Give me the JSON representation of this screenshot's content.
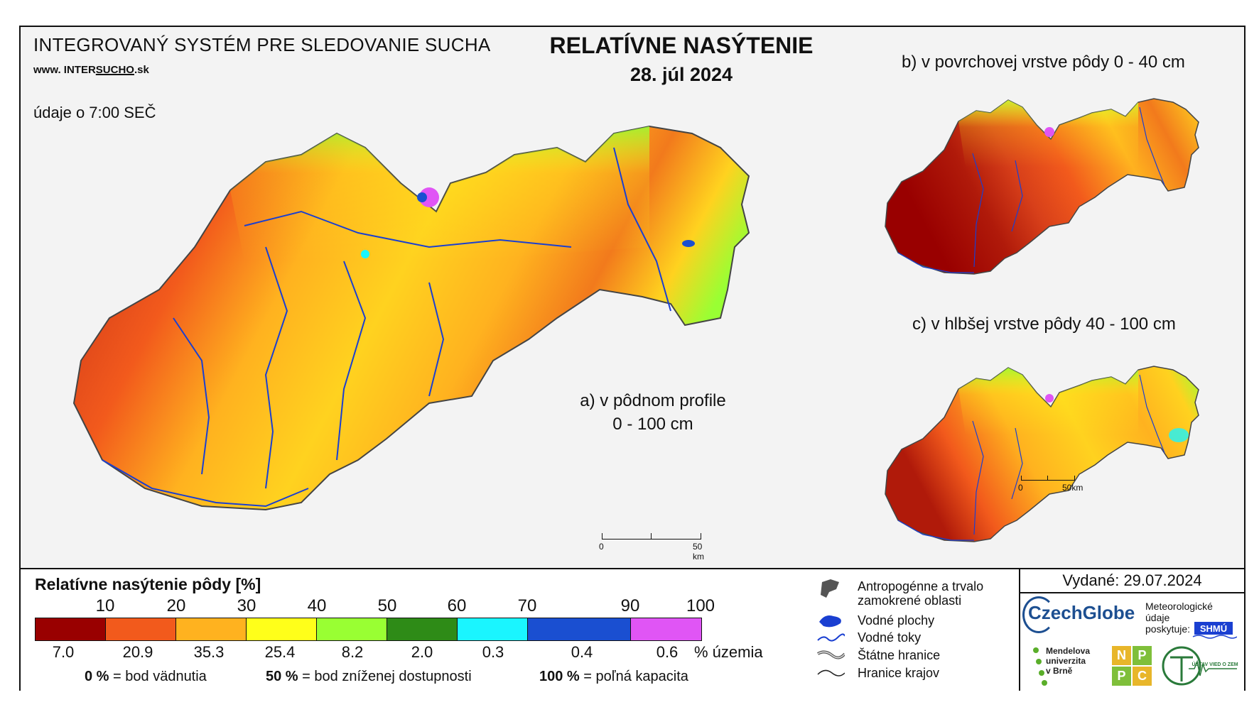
{
  "header": {
    "system_title": "INTEGROVANÝ SYSTÉM PRE SLEDOVANIE SUCHA",
    "website_prefix": "www. INTER",
    "website_brand": "SUCHO",
    "website_suffix": ".sk",
    "data_time": "údaje o 7:00 SEČ",
    "main_title": "RELATÍVNE NASÝTENIE",
    "main_date": "28. júl 2024"
  },
  "maps": {
    "a_label_line1": "a) v pôdnom profile",
    "a_label_line2": "0 - 100 cm",
    "b_label": "b) v povrchovej vrstve pôdy 0 - 40 cm",
    "c_label": "c) v hlbšej vrstve pôdy 40 - 100 cm",
    "scale_main": {
      "zero": "0",
      "end": "50 km"
    },
    "scale_small": {
      "zero": "0",
      "end": "50km"
    }
  },
  "legend": {
    "title": "Relatívne nasýtenie pôdy [%]",
    "ticks": [
      "10",
      "20",
      "30",
      "40",
      "50",
      "60",
      "70",
      "90",
      "100"
    ],
    "classes": [
      {
        "color": "#990000",
        "pct": "7.0"
      },
      {
        "color": "#f25a1c",
        "pct": "20.9"
      },
      {
        "color": "#ffb21f",
        "pct": "35.3"
      },
      {
        "color": "#ffff1a",
        "pct": "25.4"
      },
      {
        "color": "#99ff33",
        "pct": "8.2"
      },
      {
        "color": "#2e8b17",
        "pct": "2.0"
      },
      {
        "color": "#1af5ff",
        "pct": "0.3"
      },
      {
        "color": "#1a4fd1",
        "pct": "0.4"
      },
      {
        "color": "#e055f5",
        "pct": "0.6"
      }
    ],
    "pct_unit": "% územia",
    "def_0_value": "0 %",
    "def_0_text": "= bod vädnutia",
    "def_50_value": "50 %",
    "def_50_text": "= bod zníženej dostupnosti",
    "def_100_value": "100 %",
    "def_100_text": "= poľná kapacita"
  },
  "symbols": {
    "anthropogenic_line1": "Antropogénne a trvalo",
    "anthropogenic_line2": "zamokrené oblasti",
    "water_bodies": "Vodné plochy",
    "water_courses": "Vodné toky",
    "state_borders": "Štátne hranice",
    "region_borders": "Hranice krajov"
  },
  "credits": {
    "issued": "Vydané: 29.07.2024",
    "czechglobe": "CzechGlobe",
    "meteo_line1": "Meteorologické",
    "meteo_line2": "údaje",
    "meteo_line3": "poskytuje:",
    "shmu": "SHMÚ",
    "mendel_line1": "Mendelova",
    "mendel_line2": "univerzita",
    "mendel_line3": "v Brně",
    "npc": [
      "N",
      "P",
      "P",
      "C"
    ],
    "uvz": "ÚSTAV VIED O ZEMI"
  }
}
